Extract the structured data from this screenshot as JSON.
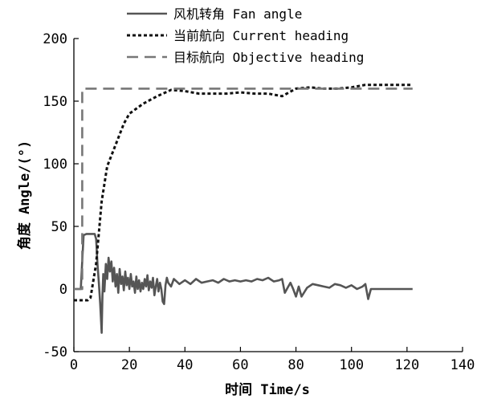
{
  "chart_data": {
    "type": "line",
    "xlabel": "时间 Time/s",
    "ylabel": "角度 Angle/(°)",
    "xlim": [
      0,
      140
    ],
    "ylim": [
      -50,
      200
    ],
    "xticks": [
      0,
      20,
      40,
      60,
      80,
      100,
      120,
      140
    ],
    "yticks": [
      -50,
      0,
      50,
      100,
      150,
      200
    ],
    "grid": false,
    "legend_position": "top",
    "series": [
      {
        "name": "风机转角 Fan angle",
        "style": "solid",
        "color": "#555555",
        "x": [
          0,
          2.5,
          3.5,
          4.5,
          5.5,
          6.5,
          7.5,
          8,
          8.5,
          9,
          9.5,
          10,
          10.3,
          10.6,
          11,
          11.5,
          12,
          12.5,
          13,
          13.5,
          14,
          14.5,
          15,
          15.5,
          16,
          16.5,
          17,
          17.5,
          18,
          18.5,
          19,
          19.5,
          20,
          20.5,
          21,
          21.5,
          22,
          22.5,
          23,
          23.5,
          24,
          24.5,
          25,
          25.5,
          26,
          26.5,
          27,
          27.5,
          28,
          28.5,
          29,
          29.5,
          30,
          30.5,
          31,
          31.5,
          32,
          32.5,
          33,
          33.5,
          34,
          35,
          36,
          37,
          38,
          40,
          42,
          44,
          46,
          48,
          50,
          52,
          54,
          56,
          58,
          60,
          62,
          64,
          66,
          68,
          70,
          72,
          74,
          75,
          76,
          77,
          78,
          79,
          80,
          81,
          82,
          84,
          86,
          88,
          90,
          92,
          94,
          96,
          98,
          100,
          102,
          104,
          105,
          106,
          107,
          108,
          110,
          115,
          122
        ],
        "y": [
          0,
          0,
          43,
          44,
          44,
          44,
          44,
          40,
          20,
          5,
          -12,
          -35,
          -5,
          12,
          -2,
          20,
          8,
          25,
          14,
          22,
          6,
          17,
          2,
          12,
          -3,
          16,
          4,
          10,
          -1,
          14,
          3,
          9,
          0,
          12,
          2,
          6,
          -3,
          10,
          0,
          7,
          -2,
          5,
          0,
          8,
          2,
          11,
          -1,
          6,
          1,
          9,
          -5,
          2,
          8,
          -2,
          5,
          0,
          -10,
          -12,
          3,
          9,
          5,
          2,
          8,
          6,
          4,
          7,
          4,
          8,
          5,
          6,
          7,
          5,
          8,
          6,
          7,
          6,
          7,
          6,
          8,
          7,
          9,
          6,
          7,
          8,
          -3,
          1,
          5,
          0,
          -6,
          2,
          -6,
          1,
          4,
          3,
          2,
          1,
          4,
          3,
          1,
          3,
          0,
          2,
          4,
          -8,
          0,
          0,
          0,
          0,
          0
        ]
      },
      {
        "name": "当前航向 Current heading",
        "style": "dotted",
        "color": "#111111",
        "x": [
          0,
          5,
          6,
          8,
          10,
          12,
          15,
          18,
          20,
          25,
          30,
          35,
          40,
          45,
          50,
          55,
          60,
          65,
          70,
          75,
          80,
          85,
          90,
          95,
          100,
          105,
          110,
          115,
          122
        ],
        "y": [
          -9,
          -9,
          -7,
          20,
          70,
          98,
          115,
          132,
          140,
          148,
          154,
          159,
          158,
          156,
          156,
          156,
          157,
          156,
          156,
          154,
          160,
          161,
          160,
          160,
          161,
          163,
          163,
          163,
          163
        ]
      },
      {
        "name": "目标航向 Objective heading",
        "style": "dashed",
        "color": "#777777",
        "x": [
          0,
          3,
          3,
          122
        ],
        "y": [
          0,
          0,
          160,
          160
        ]
      }
    ]
  }
}
